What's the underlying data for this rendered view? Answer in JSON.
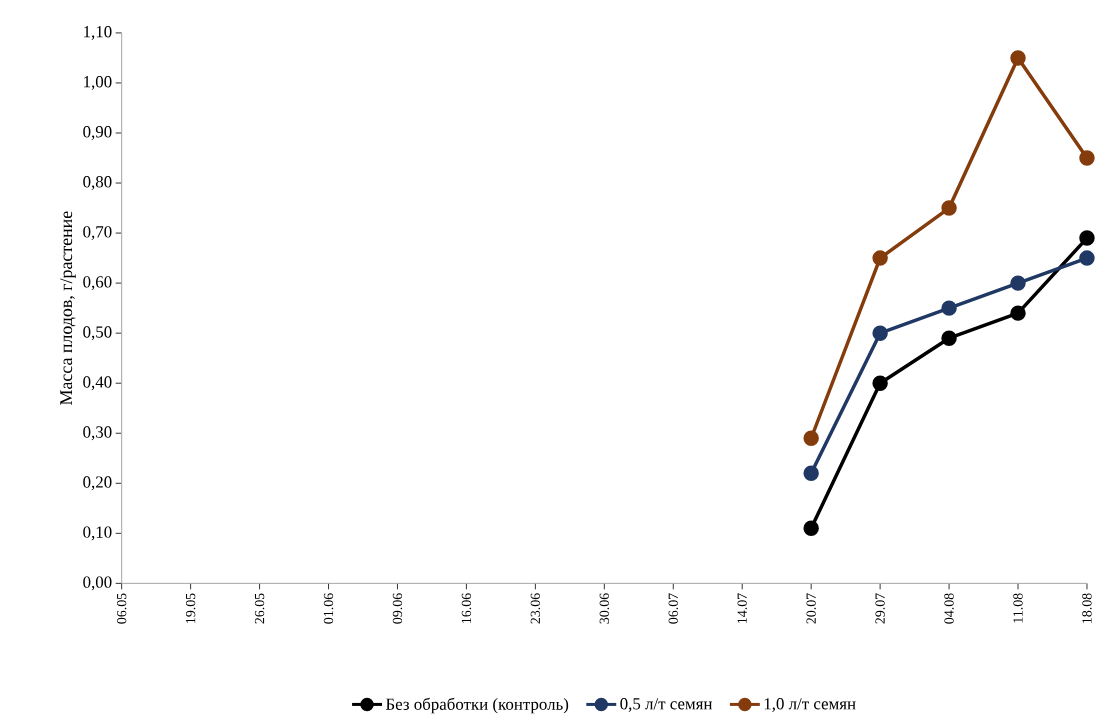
{
  "chart_data": {
    "type": "line",
    "ylabel": "Масса плодов, г/растение",
    "categories": [
      "06.05",
      "19.05",
      "26.05",
      "01.06",
      "09.06",
      "16.06",
      "23.06",
      "30.06",
      "06.07",
      "14.07",
      "20.07",
      "29.07",
      "04.08",
      "11.08",
      "18.08"
    ],
    "series": [
      {
        "name": "Без обработки (контроль)",
        "color": "#000000",
        "values": [
          null,
          null,
          null,
          null,
          null,
          null,
          null,
          null,
          null,
          null,
          0.11,
          0.4,
          0.49,
          0.54,
          0.69
        ]
      },
      {
        "name": "0,5 л/т семян",
        "color": "#203864",
        "values": [
          null,
          null,
          null,
          null,
          null,
          null,
          null,
          null,
          null,
          null,
          0.22,
          0.5,
          0.55,
          0.6,
          0.65
        ]
      },
      {
        "name": "1,0 л/т семян",
        "color": "#843c0c",
        "values": [
          null,
          null,
          null,
          null,
          null,
          null,
          null,
          null,
          null,
          null,
          0.29,
          0.65,
          0.75,
          1.05,
          0.85
        ]
      }
    ],
    "ylim": [
      0,
      1.1
    ],
    "yticks": [
      {
        "value": 0,
        "label": "0,00"
      },
      {
        "value": 0.1,
        "label": "0,10"
      },
      {
        "value": 0.2,
        "label": "0,20"
      },
      {
        "value": 0.3,
        "label": "0,30"
      },
      {
        "value": 0.4,
        "label": "0,40"
      },
      {
        "value": 0.5,
        "label": "0,50"
      },
      {
        "value": 0.6,
        "label": "0,60"
      },
      {
        "value": 0.7,
        "label": "0,70"
      },
      {
        "value": 0.8,
        "label": "0,80"
      },
      {
        "value": 0.9,
        "label": "0,90"
      },
      {
        "value": 1.0,
        "label": "1,00"
      },
      {
        "value": 1.1,
        "label": "1,10"
      }
    ],
    "marker": "circle",
    "line_style": "solid",
    "legend": "bottom",
    "grid": false
  }
}
